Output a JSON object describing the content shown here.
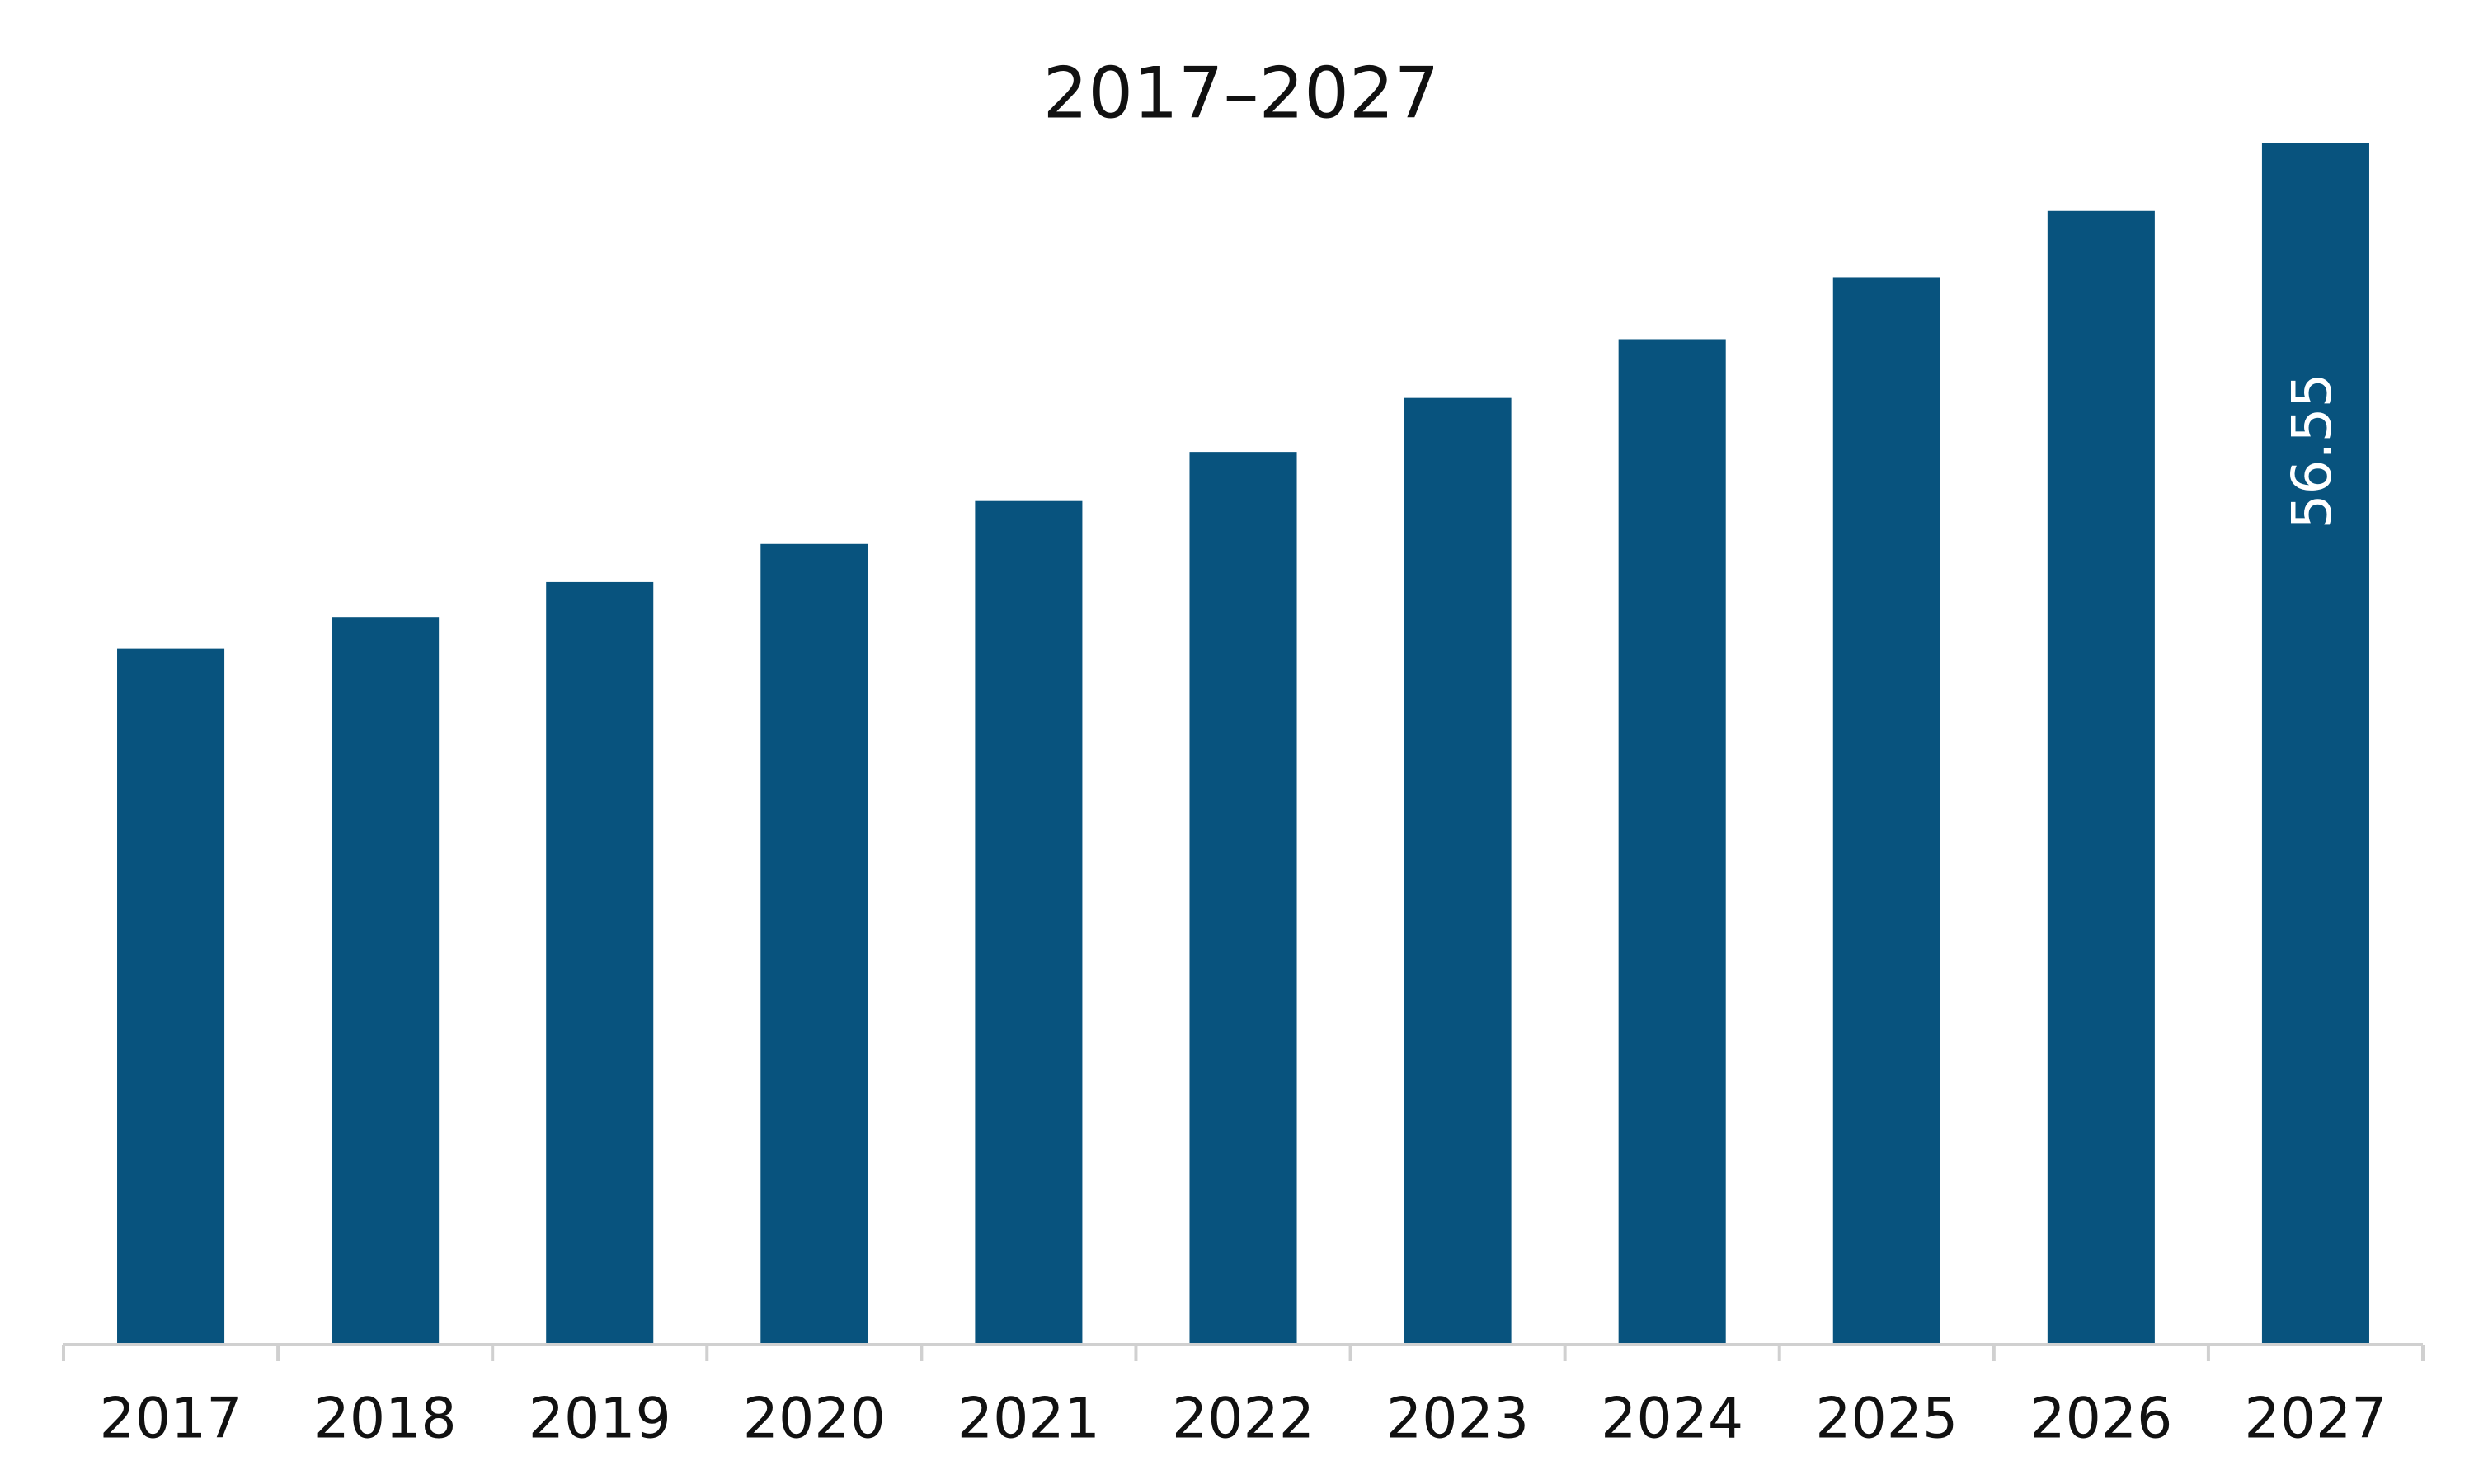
{
  "chart_data": {
    "type": "bar",
    "title": "2017–2027",
    "categories": [
      "2017",
      "2018",
      "2019",
      "2020",
      "2021",
      "2022",
      "2023",
      "2024",
      "2025",
      "2026",
      "2027"
    ],
    "values": [
      32.75,
      34.24,
      35.88,
      37.67,
      39.69,
      42.0,
      44.54,
      47.3,
      50.21,
      53.34,
      56.55
    ],
    "color": "#08537e"
  }
}
